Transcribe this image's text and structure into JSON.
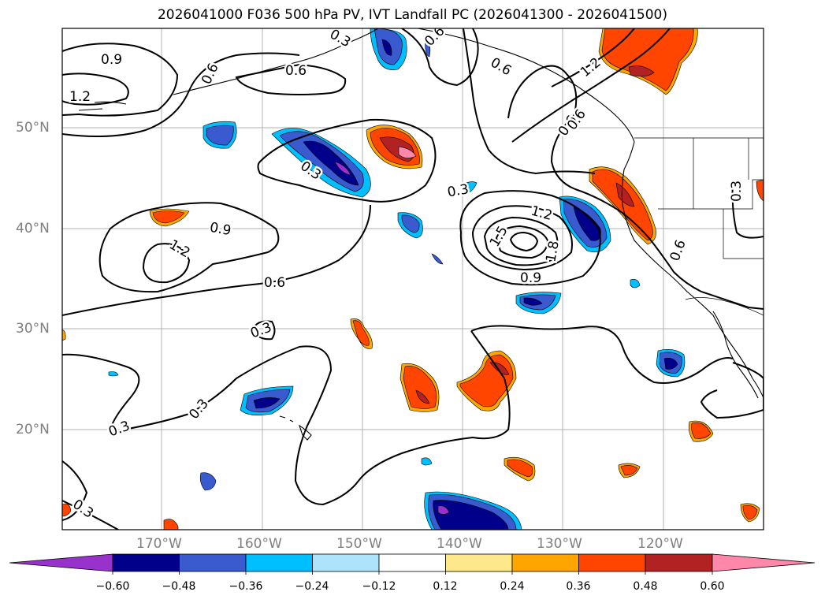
{
  "title": "2026041000 F036 500 hPa PV, IVT Landfall PC (2026041300 - 2026041500)",
  "map": {
    "lat_labels": [
      "50°N",
      "40°N",
      "30°N",
      "20°N"
    ],
    "lon_labels": [
      "170°W",
      "160°W",
      "150°W",
      "140°W",
      "130°W",
      "120°W"
    ],
    "contour_labels": [
      "0.9",
      "1.2",
      "0.6",
      "0.6",
      "0.3",
      "0.6",
      "0.3",
      "0.6",
      "0.9",
      "1.2",
      "0.6",
      "0.3",
      "0.3",
      "0.3",
      "0.3",
      "1.2",
      "1.5",
      "1.8",
      "0.9",
      "0.6",
      "0.3",
      "0.6",
      "0.6",
      "0.3",
      "1.2"
    ],
    "land_color": "#ffffff",
    "contour_color": "#000000",
    "grid_color": "#b0b0b0"
  },
  "colorbar": {
    "ticks": [
      "−0.60",
      "−0.48",
      "−0.36",
      "−0.24",
      "−0.12",
      "0.12",
      "0.24",
      "0.36",
      "0.48",
      "0.60"
    ],
    "colors": [
      "#9932cc",
      "#00008b",
      "#3a5bd0",
      "#00bfff",
      "#aee4fb",
      "#ffffff",
      "#fde98c",
      "#ffa500",
      "#ff4500",
      "#b22222",
      "#ff88aa"
    ]
  }
}
